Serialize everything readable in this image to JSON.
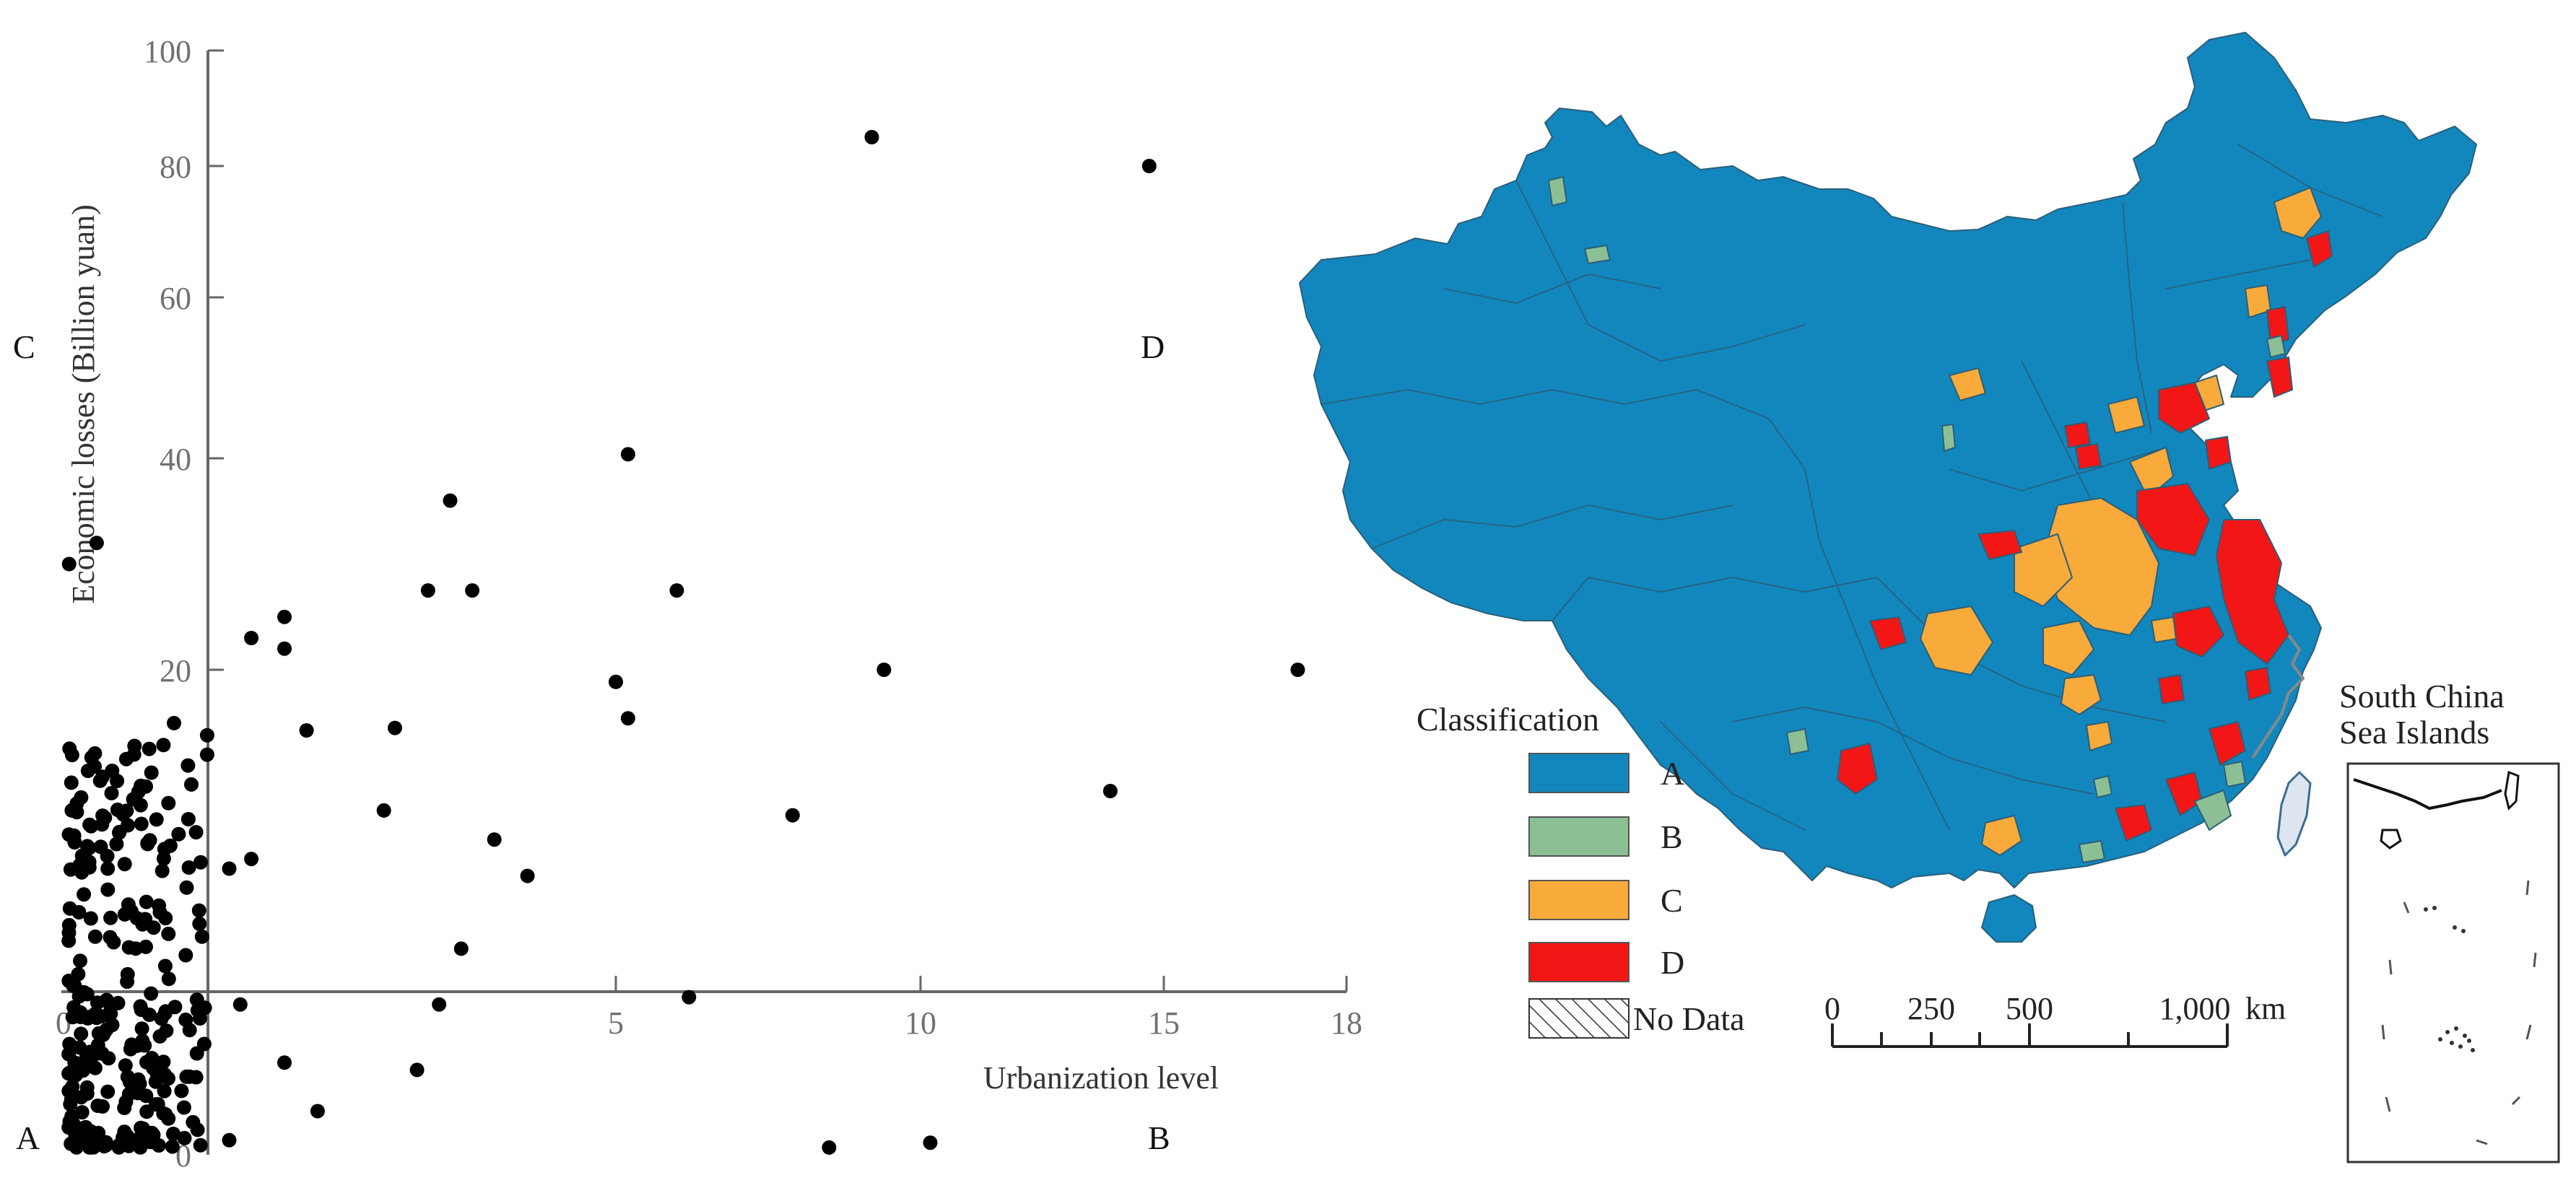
{
  "chart_data": {
    "type": "scatter",
    "xlabel": "Urbanization level",
    "ylabel": "Economic losses (Billion yuan)",
    "xlim": [
      0,
      18
    ],
    "ylim": [
      0,
      100
    ],
    "x_ticks": [
      "0",
      "5",
      "10",
      "15",
      "18"
    ],
    "y_ticks": [
      "0",
      "20",
      "40",
      "60",
      "80",
      "100"
    ],
    "quadrant_labels": [
      "A",
      "B",
      "C",
      "D"
    ],
    "points": [
      {
        "x": 9.2,
        "y": 85
      },
      {
        "x": 14.7,
        "y": 80
      },
      {
        "x": 5.2,
        "y": 40.5
      },
      {
        "x": 3.5,
        "y": 36
      },
      {
        "x": 0.3,
        "y": 32
      },
      {
        "x": 0.05,
        "y": 30
      },
      {
        "x": 3.3,
        "y": 27.5
      },
      {
        "x": 3.7,
        "y": 27.5
      },
      {
        "x": 6.0,
        "y": 27.5
      },
      {
        "x": 2.0,
        "y": 25
      },
      {
        "x": 1.7,
        "y": 23
      },
      {
        "x": 2.0,
        "y": 22
      },
      {
        "x": 9.4,
        "y": 20
      },
      {
        "x": 17.2,
        "y": 20
      },
      {
        "x": 5.0,
        "y": 19.5
      },
      {
        "x": 5.2,
        "y": 18
      },
      {
        "x": 1.0,
        "y": 17.8
      },
      {
        "x": 2.2,
        "y": 17.5
      },
      {
        "x": 3.0,
        "y": 17.6
      },
      {
        "x": 1.3,
        "y": 17.3
      },
      {
        "x": 1.3,
        "y": 16.5
      },
      {
        "x": 13.9,
        "y": 15
      },
      {
        "x": 7.9,
        "y": 14
      },
      {
        "x": 1.2,
        "y": 13.3
      },
      {
        "x": 0.95,
        "y": 14.5
      },
      {
        "x": 2.9,
        "y": 14.2
      },
      {
        "x": 3.9,
        "y": 13
      },
      {
        "x": 4.2,
        "y": 11.5
      },
      {
        "x": 1.5,
        "y": 11.8
      },
      {
        "x": 1.7,
        "y": 12.2
      },
      {
        "x": 0.4,
        "y": 11.8
      },
      {
        "x": 0.6,
        "y": 10
      },
      {
        "x": 3.6,
        "y": 8.5
      },
      {
        "x": 6.2,
        "y": 6.5
      },
      {
        "x": 3.4,
        "y": 6.2
      },
      {
        "x": 1.6,
        "y": 6.2
      },
      {
        "x": 3.2,
        "y": 3.5
      },
      {
        "x": 2.0,
        "y": 3.8
      },
      {
        "x": 0.6,
        "y": 3.0
      },
      {
        "x": 1.2,
        "y": 3.2
      },
      {
        "x": 0.1,
        "y": 3.8
      },
      {
        "x": 0.4,
        "y": 2.6
      },
      {
        "x": 2.3,
        "y": 1.8
      },
      {
        "x": 0.3,
        "y": 0.5
      },
      {
        "x": 0.8,
        "y": 0.9
      },
      {
        "x": 1.5,
        "y": 0.6
      },
      {
        "x": 0.15,
        "y": 8.0
      },
      {
        "x": 8.5,
        "y": 0.3
      },
      {
        "x": 10.2,
        "y": 0.5
      }
    ],
    "grid": false
  },
  "map": {
    "legend_title": "Classification",
    "legend": [
      {
        "label": "A",
        "color": "#1287be"
      },
      {
        "label": "B",
        "color": "#8cbf94"
      },
      {
        "label": "C",
        "color": "#f8aa3a"
      },
      {
        "label": "D",
        "color": "#f21616"
      }
    ],
    "no_data_label": "No Data",
    "scale_ticks": [
      "0",
      "250",
      "500",
      "1,000"
    ],
    "scale_unit": "km",
    "inset_title_line1": "South China",
    "inset_title_line2": "Sea Islands"
  }
}
